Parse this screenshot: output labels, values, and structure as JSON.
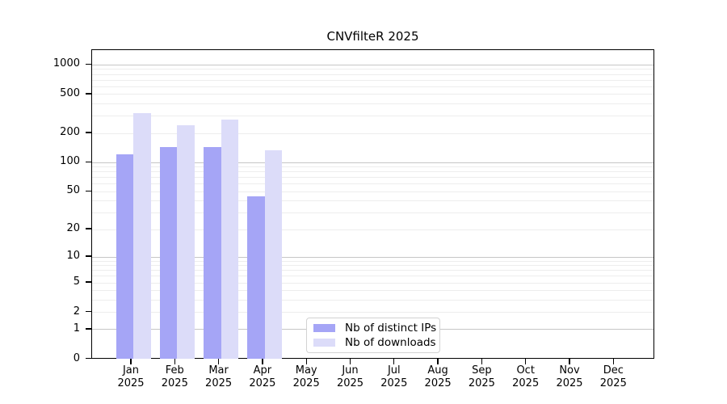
{
  "chart_data": {
    "type": "bar",
    "title": "CNVfilteR 2025",
    "categories": [
      "Jan 2025",
      "Feb 2025",
      "Mar 2025",
      "Apr 2025",
      "May 2025",
      "Jun 2025",
      "Jul 2025",
      "Aug 2025",
      "Sep 2025",
      "Oct 2025",
      "Nov 2025",
      "Dec 2025"
    ],
    "series": [
      {
        "name": "Nb of distinct IPs",
        "color": "#a5a5f6",
        "values": [
          122,
          146,
          146,
          45,
          0,
          0,
          0,
          0,
          0,
          0,
          0,
          0
        ]
      },
      {
        "name": "Nb of downloads",
        "color": "#dcdcf9",
        "values": [
          324,
          242,
          275,
          135,
          0,
          0,
          0,
          0,
          0,
          0,
          0,
          0
        ]
      }
    ],
    "xlabel": "",
    "ylabel": "",
    "yscale": "log1p",
    "yticks": [
      0,
      1,
      2,
      5,
      10,
      20,
      50,
      100,
      200,
      500,
      1000
    ],
    "ylim": [
      0,
      1420
    ],
    "grid": "horizontal-minor-log",
    "legend_position": "inside-bottom-center",
    "colors": {
      "major_grid": "#c6c6c6",
      "minor_grid": "#ededed",
      "axis": "#000000",
      "text": "#000000",
      "background": "#ffffff"
    }
  }
}
